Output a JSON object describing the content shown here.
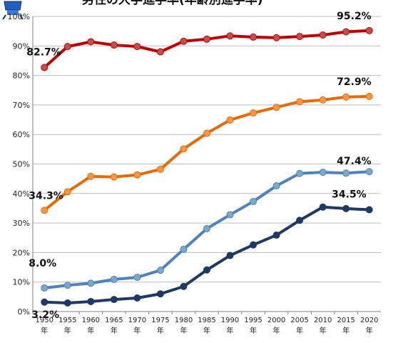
{
  "title": "男性の大学進学率(年齢別進学率)",
  "chart_data": {
    "type": "line",
    "x": [
      1950,
      1955,
      1960,
      1965,
      1970,
      1975,
      1980,
      1985,
      1990,
      1995,
      2000,
      2005,
      2010,
      2015,
      2020
    ],
    "x_tick_labels": [
      [
        "1950",
        "年"
      ],
      [
        "1955",
        "年"
      ],
      [
        "1960",
        "年"
      ],
      [
        "1965",
        "年"
      ],
      [
        "1970",
        "年"
      ],
      [
        "1975",
        "年"
      ],
      [
        "1980",
        "年"
      ],
      [
        "1985",
        "年"
      ],
      [
        "1990",
        "年"
      ],
      [
        "1995",
        "年"
      ],
      [
        "2000",
        "年"
      ],
      [
        "2005",
        "年"
      ],
      [
        "2010",
        "年"
      ],
      [
        "2015",
        "年"
      ],
      [
        "2020",
        "年"
      ]
    ],
    "ylim": [
      0,
      100
    ],
    "y_ticks": [
      "0%",
      "10%",
      "20%",
      "30%",
      "40%",
      "50%",
      "60%",
      "70%",
      "80%",
      "90%",
      "100%"
    ],
    "grid": true,
    "series": [
      {
        "color": "#c00000",
        "marker": "#c0504d",
        "values": [
          82.7,
          89.8,
          91.4,
          90.3,
          89.8,
          88.0,
          91.6,
          92.3,
          93.4,
          93.0,
          92.8,
          93.2,
          93.7,
          94.8,
          95.2
        ],
        "start_label": "82.7%",
        "end_label": "95.2%"
      },
      {
        "color": "#e36c0a",
        "marker": "#f79646",
        "values": [
          34.3,
          40.6,
          45.8,
          45.6,
          46.3,
          48.2,
          55.1,
          60.4,
          64.9,
          67.3,
          69.2,
          71.1,
          71.7,
          72.7,
          72.9
        ],
        "start_label": "34.3%",
        "end_label": "72.9%"
      },
      {
        "color": "#4f81bd",
        "marker": "#7aa9c7",
        "values": [
          8.0,
          8.9,
          9.6,
          10.9,
          11.6,
          14.0,
          21.1,
          28.1,
          32.8,
          37.3,
          42.6,
          46.8,
          47.2,
          46.9,
          47.4
        ],
        "start_label": "8.0%",
        "end_label": "47.4%"
      },
      {
        "color": "#1f3864",
        "marker": "#1f3864",
        "values": [
          3.2,
          2.9,
          3.4,
          4.1,
          4.6,
          6.0,
          8.5,
          14.1,
          19.0,
          22.6,
          25.9,
          30.9,
          35.4,
          34.9,
          34.5
        ],
        "start_label": "3.2%",
        "end_label": "34.5%"
      }
    ]
  }
}
